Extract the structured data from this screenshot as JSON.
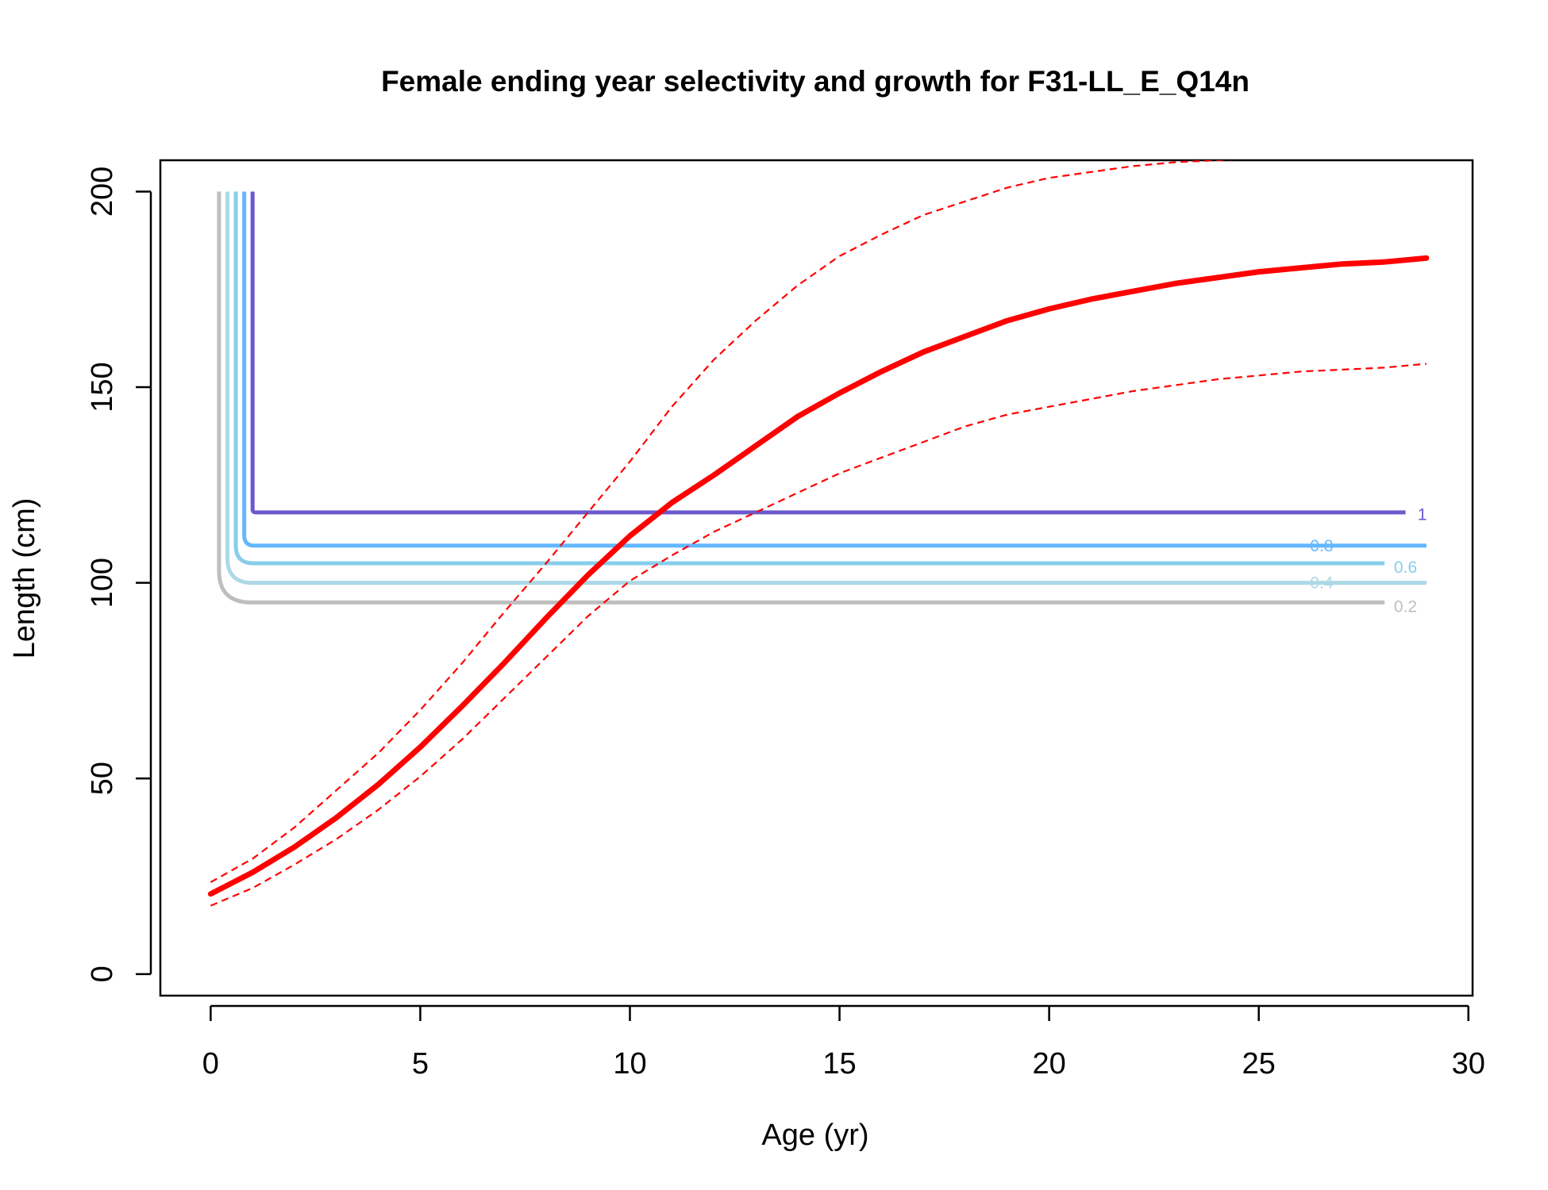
{
  "chart_data": {
    "type": "line",
    "title": "Female ending year selectivity and growth for F31-LL_E_Q14n",
    "xlabel": "Age (yr)",
    "ylabel": "Length (cm)",
    "xlim": [
      -1.2,
      30.1
    ],
    "ylim": [
      -5.5,
      208
    ],
    "x_ticks": [
      0,
      5,
      10,
      15,
      20,
      25,
      30
    ],
    "y_ticks": [
      0,
      50,
      100,
      150,
      200
    ],
    "grid": false,
    "legend": "none",
    "growth": {
      "color": "#ff0000",
      "mean": {
        "x": [
          0,
          1,
          2,
          3,
          4,
          5,
          6,
          7,
          8,
          9,
          10,
          11,
          12,
          13,
          14,
          15,
          16,
          17,
          18,
          19,
          20,
          21,
          22,
          23,
          24,
          25,
          26,
          27,
          28,
          29
        ],
        "y": [
          20.5,
          26,
          32.5,
          40,
          48.5,
          58,
          68.5,
          79.5,
          91,
          102,
          112,
          120.5,
          127.5,
          135,
          142.5,
          148.5,
          154,
          159,
          163,
          167,
          170,
          172.5,
          174.5,
          176.5,
          178,
          179.5,
          180.5,
          181.5,
          182,
          183
        ]
      },
      "upper": {
        "x": [
          0,
          1,
          2,
          3,
          4,
          5,
          6,
          7,
          8,
          9,
          10,
          11,
          12,
          13,
          14,
          15,
          16,
          17,
          18,
          19,
          20,
          21,
          22,
          23,
          24,
          25,
          26,
          27,
          28,
          29
        ],
        "y": [
          23.5,
          29.5,
          37.5,
          47,
          56.5,
          67.5,
          79.5,
          92.5,
          105,
          118,
          131,
          145,
          157,
          167,
          176,
          183.5,
          189,
          194,
          197.5,
          201,
          203.5,
          205,
          206.5,
          207.5,
          208,
          208.5,
          209,
          209.5,
          210,
          210.5
        ]
      },
      "lower": {
        "x": [
          0,
          1,
          2,
          3,
          4,
          5,
          6,
          7,
          8,
          9,
          10,
          11,
          12,
          13,
          14,
          15,
          16,
          17,
          18,
          19,
          20,
          21,
          22,
          23,
          24,
          25,
          26,
          27,
          28,
          29
        ],
        "y": [
          17.5,
          22,
          28,
          34.5,
          42,
          50.5,
          60,
          70.5,
          81,
          91.5,
          100.5,
          107,
          113,
          118,
          123,
          128,
          132,
          136,
          140,
          143,
          145,
          147,
          149,
          150.5,
          152,
          153,
          154,
          154.5,
          155,
          156
        ]
      }
    },
    "selectivity_contours": [
      {
        "level": "0.2",
        "color": "#bebebe",
        "x_vertical": 0.2,
        "y_floor": 95,
        "x_end": 28,
        "label_x": 28.5,
        "label_y": 94
      },
      {
        "level": "0.4",
        "color": "#add8e6",
        "x_vertical": 0.4,
        "y_floor": 100,
        "x_end": 29,
        "label_x": 26.5,
        "label_y": 100
      },
      {
        "level": "0.6",
        "color": "#87ceeb",
        "x_vertical": 0.6,
        "y_floor": 105,
        "x_end": 28,
        "label_x": 28.5,
        "label_y": 104
      },
      {
        "level": "0.8",
        "color": "#63b8ff",
        "x_vertical": 0.8,
        "y_floor": 109.5,
        "x_end": 29,
        "label_x": 26.5,
        "label_y": 109.5
      },
      {
        "level": "1",
        "color": "#6a5acd",
        "x_vertical": 1,
        "y_floor": 118,
        "x_end": 28.5,
        "label_x": 28.9,
        "label_y": 117.5
      }
    ],
    "contour_top_y": 200
  }
}
